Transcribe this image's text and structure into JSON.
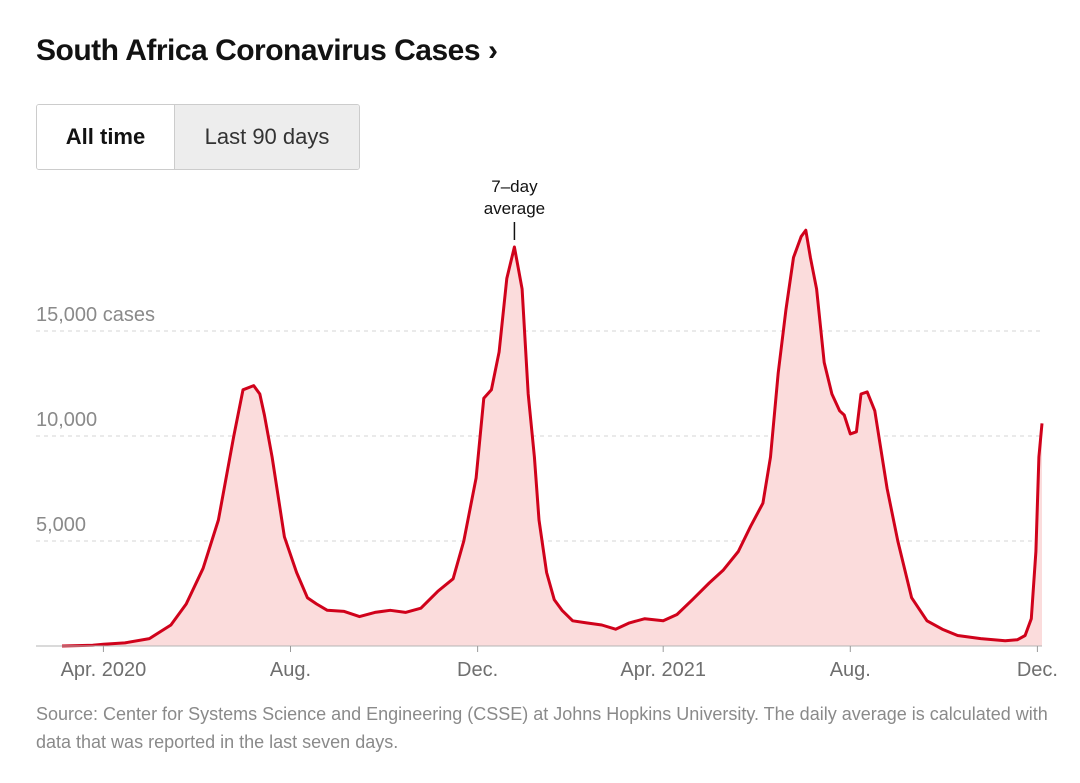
{
  "header": {
    "title": "South Africa Coronavirus Cases",
    "chevron": "›"
  },
  "toggle": {
    "options": [
      "All time",
      "Last 90 days"
    ],
    "selected": "All time"
  },
  "chart_data": {
    "type": "area",
    "annotation": "7–day average",
    "y_tick_labels": [
      "15,000 cases",
      "10,000",
      "5,000"
    ],
    "y_ticks": [
      15000,
      10000,
      5000
    ],
    "ylim": [
      0,
      20000
    ],
    "grid": true,
    "x_tick_labels": [
      "Apr. 2020",
      "Aug.",
      "Dec.",
      "Apr. 2021",
      "Aug.",
      "Dec."
    ],
    "x_tick_dates": [
      "2020-04-01",
      "2020-08-01",
      "2020-12-01",
      "2021-04-01",
      "2021-08-01",
      "2021-12-01"
    ],
    "xlim": [
      "2020-03-05",
      "2021-12-04"
    ],
    "line_color": "#d0021b",
    "fill_color": "#fbdcdc",
    "series": [
      {
        "x": [
          "2020-03-05",
          "2020-03-25",
          "2020-04-01",
          "2020-04-15",
          "2020-05-01",
          "2020-05-15",
          "2020-05-25",
          "2020-06-05",
          "2020-06-15",
          "2020-06-25",
          "2020-07-01",
          "2020-07-08",
          "2020-07-12",
          "2020-07-15",
          "2020-07-20",
          "2020-07-28",
          "2020-08-05",
          "2020-08-12",
          "2020-08-18",
          "2020-08-25",
          "2020-09-05",
          "2020-09-15",
          "2020-09-25",
          "2020-10-05",
          "2020-10-15",
          "2020-10-25",
          "2020-11-05",
          "2020-11-15",
          "2020-11-22",
          "2020-11-30",
          "2020-12-05",
          "2020-12-10",
          "2020-12-15",
          "2020-12-20",
          "2020-12-25",
          "2020-12-30",
          "2021-01-03",
          "2021-01-07",
          "2021-01-10",
          "2021-01-15",
          "2021-01-20",
          "2021-01-25",
          "2021-02-01",
          "2021-02-10",
          "2021-02-20",
          "2021-03-01",
          "2021-03-10",
          "2021-03-20",
          "2021-04-01",
          "2021-04-10",
          "2021-04-20",
          "2021-05-01",
          "2021-05-10",
          "2021-05-20",
          "2021-05-28",
          "2021-06-05",
          "2021-06-10",
          "2021-06-15",
          "2021-06-20",
          "2021-06-25",
          "2021-06-30",
          "2021-07-03",
          "2021-07-06",
          "2021-07-10",
          "2021-07-15",
          "2021-07-20",
          "2021-07-25",
          "2021-07-28",
          "2021-08-01",
          "2021-08-05",
          "2021-08-08",
          "2021-08-12",
          "2021-08-17",
          "2021-08-25",
          "2021-09-01",
          "2021-09-10",
          "2021-09-20",
          "2021-09-30",
          "2021-10-10",
          "2021-10-25",
          "2021-11-10",
          "2021-11-18",
          "2021-11-23",
          "2021-11-27",
          "2021-11-30",
          "2021-12-02",
          "2021-12-04"
        ],
        "y": [
          0,
          40,
          80,
          150,
          350,
          1000,
          2000,
          3700,
          6000,
          10000,
          12200,
          12400,
          12000,
          11000,
          9000,
          5200,
          3500,
          2300,
          2000,
          1700,
          1650,
          1400,
          1600,
          1700,
          1600,
          1800,
          2600,
          3200,
          5000,
          8000,
          11800,
          12200,
          14000,
          17500,
          19000,
          17000,
          12000,
          9000,
          6000,
          3500,
          2200,
          1700,
          1200,
          1100,
          1000,
          800,
          1100,
          1300,
          1200,
          1500,
          2200,
          3000,
          3600,
          4500,
          5700,
          6800,
          9000,
          13000,
          16000,
          18500,
          19500,
          19800,
          18500,
          17000,
          13500,
          12000,
          11200,
          11000,
          10100,
          10200,
          12000,
          12100,
          11200,
          7500,
          5000,
          2300,
          1200,
          800,
          500,
          350,
          250,
          300,
          500,
          1300,
          4500,
          9000,
          10600
        ]
      }
    ]
  },
  "footer": {
    "source": "Source: Center for Systems Science and Engineering (CSSE) at Johns Hopkins University. The daily average is calculated with data that was reported in the last seven days."
  }
}
